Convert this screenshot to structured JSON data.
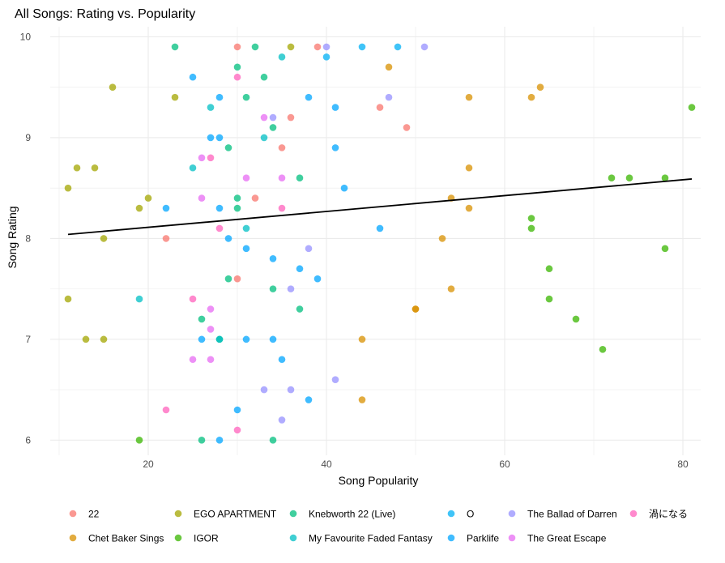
{
  "chart_data": {
    "type": "scatter",
    "title": "All Songs: Rating vs. Popularity",
    "xlabel": "Song Popularity",
    "ylabel": "Song Rating",
    "xlim": [
      9,
      82
    ],
    "ylim": [
      5.85,
      10.1
    ],
    "x_ticks": [
      20,
      40,
      60,
      80
    ],
    "y_ticks": [
      6,
      7,
      8,
      9,
      10
    ],
    "grid": true,
    "legend_position": "bottom",
    "trend_line": {
      "x": [
        11,
        81
      ],
      "y": [
        8.04,
        8.59
      ]
    },
    "series": [
      {
        "name": "22",
        "color": "#F8766D",
        "points": [
          [
            39,
            9.9
          ],
          [
            30,
            9.9
          ],
          [
            46,
            9.3
          ],
          [
            36,
            9.2
          ],
          [
            49,
            9.1
          ],
          [
            35,
            8.9
          ],
          [
            32,
            8.4
          ],
          [
            22,
            8.0
          ],
          [
            30,
            7.6
          ]
        ]
      },
      {
        "name": "Chet Baker Sings",
        "color": "#D89000",
        "points": [
          [
            47,
            9.7
          ],
          [
            64,
            9.5
          ],
          [
            56,
            9.4
          ],
          [
            63,
            9.4
          ],
          [
            56,
            8.7
          ],
          [
            54,
            8.4
          ],
          [
            56,
            8.3
          ],
          [
            53,
            8.0
          ],
          [
            54,
            7.5
          ],
          [
            50,
            7.3
          ],
          [
            50,
            7.3
          ],
          [
            44,
            7.0
          ],
          [
            44,
            6.4
          ]
        ]
      },
      {
        "name": "EGO APARTMENT",
        "color": "#A3A500",
        "points": [
          [
            36,
            9.9
          ],
          [
            16,
            9.5
          ],
          [
            23,
            9.4
          ],
          [
            12,
            8.7
          ],
          [
            14,
            8.7
          ],
          [
            11,
            8.5
          ],
          [
            20,
            8.4
          ],
          [
            19,
            8.3
          ],
          [
            15,
            8.0
          ],
          [
            11,
            7.4
          ],
          [
            13,
            7.0
          ],
          [
            15,
            7.0
          ]
        ]
      },
      {
        "name": "IGOR",
        "color": "#39B600",
        "points": [
          [
            81,
            9.3
          ],
          [
            72,
            8.6
          ],
          [
            74,
            8.6
          ],
          [
            78,
            8.6
          ],
          [
            63,
            8.2
          ],
          [
            63,
            8.1
          ],
          [
            78,
            7.9
          ],
          [
            65,
            7.7
          ],
          [
            65,
            7.4
          ],
          [
            68,
            7.2
          ],
          [
            71,
            6.9
          ],
          [
            19,
            6.0
          ]
        ]
      },
      {
        "name": "Knebworth 22 (Live)",
        "color": "#00BF7D",
        "points": [
          [
            23,
            9.9
          ],
          [
            32,
            9.9
          ],
          [
            30,
            9.7
          ],
          [
            33,
            9.6
          ],
          [
            31,
            9.4
          ],
          [
            34,
            9.1
          ],
          [
            29,
            8.9
          ],
          [
            37,
            8.6
          ],
          [
            30,
            8.4
          ],
          [
            30,
            8.3
          ],
          [
            29,
            7.6
          ],
          [
            34,
            7.5
          ],
          [
            37,
            7.3
          ],
          [
            26,
            7.2
          ],
          [
            28,
            7.0
          ],
          [
            26,
            6.0
          ],
          [
            34,
            6.0
          ]
        ]
      },
      {
        "name": "My Favourite Faded Fantasy",
        "color": "#00BFC4",
        "points": [
          [
            35,
            9.8
          ],
          [
            27,
            9.3
          ],
          [
            33,
            9.0
          ],
          [
            25,
            8.7
          ],
          [
            31,
            8.1
          ],
          [
            19,
            7.4
          ],
          [
            28,
            7.0
          ]
        ]
      },
      {
        "name": "O",
        "color": "#00B0F6",
        "points": [
          [
            44,
            9.9
          ],
          [
            48,
            9.9
          ],
          [
            40,
            9.8
          ]
        ]
      },
      {
        "name": "Parklife",
        "color": "#00A5FF",
        "points": [
          [
            25,
            9.6
          ],
          [
            28,
            9.4
          ],
          [
            38,
            9.4
          ],
          [
            41,
            9.3
          ],
          [
            27,
            9.0
          ],
          [
            28,
            9.0
          ],
          [
            41,
            8.9
          ],
          [
            42,
            8.5
          ],
          [
            22,
            8.3
          ],
          [
            28,
            8.3
          ],
          [
            46,
            8.1
          ],
          [
            29,
            8.0
          ],
          [
            31,
            7.9
          ],
          [
            34,
            7.8
          ],
          [
            37,
            7.7
          ],
          [
            39,
            7.6
          ],
          [
            26,
            7.0
          ],
          [
            31,
            7.0
          ],
          [
            34,
            7.0
          ],
          [
            35,
            6.8
          ],
          [
            38,
            6.4
          ],
          [
            30,
            6.3
          ],
          [
            28,
            6.0
          ]
        ]
      },
      {
        "name": "The Ballad of Darren",
        "color": "#9590FF",
        "points": [
          [
            40,
            9.9
          ],
          [
            51,
            9.9
          ],
          [
            47,
            9.4
          ],
          [
            34,
            9.2
          ],
          [
            38,
            7.9
          ],
          [
            36,
            7.5
          ],
          [
            41,
            6.6
          ],
          [
            33,
            6.5
          ],
          [
            36,
            6.5
          ],
          [
            35,
            6.2
          ]
        ]
      },
      {
        "name": "The Great Escape",
        "color": "#E76BF3",
        "points": [
          [
            33,
            9.2
          ],
          [
            26,
            8.8
          ],
          [
            31,
            8.6
          ],
          [
            35,
            8.6
          ],
          [
            26,
            8.4
          ],
          [
            27,
            7.3
          ],
          [
            27,
            7.1
          ],
          [
            25,
            6.8
          ],
          [
            27,
            6.8
          ]
        ]
      },
      {
        "name": "渦になる",
        "color": "#FF62BC",
        "points": [
          [
            30,
            9.6
          ],
          [
            27,
            8.8
          ],
          [
            35,
            8.3
          ],
          [
            28,
            8.1
          ],
          [
            25,
            7.4
          ],
          [
            22,
            6.3
          ],
          [
            30,
            6.1
          ]
        ]
      }
    ]
  }
}
